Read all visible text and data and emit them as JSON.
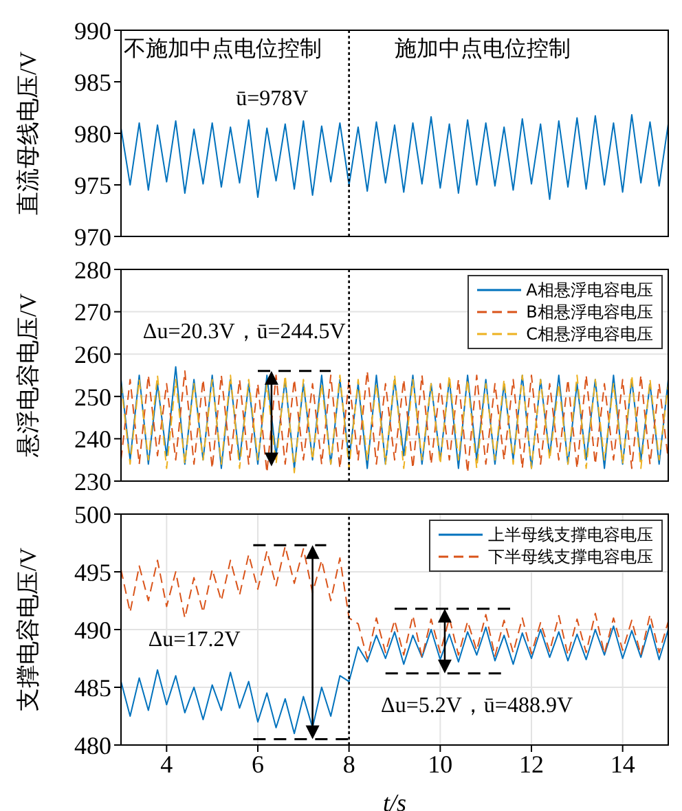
{
  "chart_data": [
    {
      "type": "line",
      "ylabel": "直流母线电压/V",
      "xlim": [
        3,
        15
      ],
      "xticks": [
        4,
        6,
        8,
        10,
        12,
        14
      ],
      "ylim": [
        970,
        990
      ],
      "yticks": [
        970,
        975,
        980,
        985,
        990
      ],
      "grid": false,
      "legend": false,
      "tick_labels": "y",
      "x": [
        3,
        3.2,
        3.4,
        3.6,
        3.8,
        4,
        4.2,
        4.4,
        4.6,
        4.8,
        5,
        5.2,
        5.4,
        5.6,
        5.8,
        6,
        6.2,
        6.4,
        6.6,
        6.8,
        7,
        7.2,
        7.4,
        7.6,
        7.8,
        8,
        8.2,
        8.4,
        8.6,
        8.8,
        9,
        9.2,
        9.4,
        9.6,
        9.8,
        10,
        10.2,
        10.4,
        10.6,
        10.8,
        11,
        11.2,
        11.4,
        11.6,
        11.8,
        12,
        12.2,
        12.4,
        12.6,
        12.8,
        13,
        13.2,
        13.4,
        13.6,
        13.8,
        14,
        14.2,
        14.4,
        14.6,
        14.8,
        15
      ],
      "series": [
        {
          "color": "#0072bd",
          "line_style": "solid",
          "values": [
            980.5,
            975.0,
            981.0,
            974.5,
            980.8,
            975.3,
            981.2,
            974.2,
            980.4,
            975.1,
            981.0,
            974.8,
            980.6,
            975.2,
            981.3,
            973.8,
            980.5,
            975.4,
            980.9,
            974.6,
            981.2,
            974.0,
            980.7,
            975.3,
            981.0,
            975.0,
            980.6,
            974.4,
            981.1,
            975.2,
            980.8,
            974.3,
            981.0,
            975.1,
            981.6,
            974.7,
            980.9,
            974.2,
            981.3,
            975.0,
            981.0,
            974.9,
            980.6,
            974.5,
            981.4,
            975.1,
            980.9,
            973.6,
            981.2,
            974.8,
            981.5,
            974.6,
            981.7,
            975.0,
            981.0,
            974.3,
            981.8,
            975.2,
            981.1,
            974.9,
            980.9
          ]
        }
      ],
      "annotations": [
        "不施加中点电位控制",
        "施加中点电位控制",
        "ū=978V"
      ],
      "ref_lines": [
        {
          "axis": "x",
          "value": 8,
          "line_style": "dotted",
          "color": "#000000"
        }
      ]
    },
    {
      "type": "line",
      "ylabel": "悬浮电容电压/V",
      "xlim": [
        3,
        15
      ],
      "xticks": [
        4,
        6,
        8,
        10,
        12,
        14
      ],
      "ylim": [
        230,
        280
      ],
      "yticks": [
        230,
        240,
        250,
        260,
        270,
        280
      ],
      "grid": true,
      "legend": "top right",
      "tick_labels": "y",
      "x": [
        3,
        3.2,
        3.4,
        3.6,
        3.8,
        4,
        4.2,
        4.4,
        4.6,
        4.8,
        5,
        5.2,
        5.4,
        5.6,
        5.8,
        6,
        6.2,
        6.4,
        6.6,
        6.8,
        7,
        7.2,
        7.4,
        7.6,
        7.8,
        8,
        8.2,
        8.4,
        8.6,
        8.8,
        9,
        9.2,
        9.4,
        9.6,
        9.8,
        10,
        10.2,
        10.4,
        10.6,
        10.8,
        11,
        11.2,
        11.4,
        11.6,
        11.8,
        12,
        12.2,
        12.4,
        12.6,
        12.8,
        13,
        13.2,
        13.4,
        13.6,
        13.8,
        14,
        14.2,
        14.4,
        14.6,
        14.8,
        15
      ],
      "series": [
        {
          "name": "A相悬浮电容电压",
          "color": "#0072bd",
          "line_style": "solid",
          "values": [
            254,
            235,
            255,
            234,
            253,
            236,
            257,
            234,
            254,
            235,
            255,
            233,
            254,
            235,
            253,
            234,
            255,
            236,
            254,
            233,
            253,
            235,
            255,
            234,
            254,
            235,
            253,
            233,
            255,
            234,
            254,
            236,
            255,
            234,
            253,
            235,
            254,
            233,
            255,
            235,
            254,
            234,
            253,
            235,
            255,
            233,
            254,
            236,
            255,
            234,
            253,
            235,
            254,
            233,
            255,
            234,
            254,
            235,
            253,
            234,
            254
          ]
        },
        {
          "name": "B相悬浮电容电压",
          "color": "#d95319",
          "line_style": "dashed",
          "values": [
            235,
            254,
            234,
            255,
            236,
            253,
            235,
            256,
            234,
            254,
            233,
            255,
            235,
            254,
            234,
            253,
            232,
            255,
            234,
            254,
            235,
            253,
            234,
            255,
            233,
            254,
            235,
            256,
            234,
            253,
            235,
            254,
            233,
            255,
            234,
            253,
            235,
            254,
            232,
            255,
            234,
            253,
            235,
            254,
            233,
            255,
            234,
            253,
            235,
            254,
            233,
            255,
            234,
            253,
            235,
            254,
            233,
            255,
            234,
            253,
            235
          ]
        },
        {
          "name": "C相悬浮电容电压",
          "color": "#edb120",
          "line_style": "dashed",
          "values": [
            253,
            234,
            254,
            235,
            255,
            233,
            254,
            234,
            253,
            235,
            254,
            234,
            255,
            233,
            254,
            235,
            253,
            234,
            255,
            232,
            254,
            235,
            253,
            234,
            255,
            233,
            254,
            235,
            253,
            234,
            255,
            233,
            254,
            235,
            253,
            234,
            255,
            235,
            254,
            233,
            253,
            235,
            254,
            234,
            255,
            233,
            254,
            235,
            253,
            234,
            255,
            233,
            254,
            235,
            253,
            234,
            255,
            233,
            254,
            235,
            253
          ]
        }
      ],
      "annotations": [
        "Δu=20.3V，ū=244.5V"
      ],
      "ref_lines": [
        {
          "axis": "x",
          "value": 8,
          "line_style": "dotted",
          "color": "#000000"
        }
      ]
    },
    {
      "type": "line",
      "xlabel": "t/s",
      "ylabel": "支撑电容电压/V",
      "xlim": [
        3,
        15
      ],
      "xticks": [
        4,
        6,
        8,
        10,
        12,
        14
      ],
      "ylim": [
        480,
        500
      ],
      "yticks": [
        480,
        485,
        490,
        495,
        500
      ],
      "grid": true,
      "legend": "top right",
      "x": [
        3,
        3.2,
        3.4,
        3.6,
        3.8,
        4,
        4.2,
        4.4,
        4.6,
        4.8,
        5,
        5.2,
        5.4,
        5.6,
        5.8,
        6,
        6.2,
        6.4,
        6.6,
        6.8,
        7,
        7.2,
        7.4,
        7.6,
        7.8,
        8,
        8.2,
        8.4,
        8.6,
        8.8,
        9,
        9.2,
        9.4,
        9.6,
        9.8,
        10,
        10.2,
        10.4,
        10.6,
        10.8,
        11,
        11.2,
        11.4,
        11.6,
        11.8,
        12,
        12.2,
        12.4,
        12.6,
        12.8,
        13,
        13.2,
        13.4,
        13.6,
        13.8,
        14,
        14.2,
        14.4,
        14.6,
        14.8,
        15
      ],
      "series": [
        {
          "name": "上半母线支撑电容电压",
          "color": "#0072bd",
          "line_style": "solid",
          "values": [
            485.5,
            482.5,
            485.8,
            483.0,
            486.5,
            483.5,
            486.0,
            482.8,
            485.0,
            482.2,
            485.2,
            483.0,
            486.3,
            483.2,
            485.5,
            482.0,
            484.5,
            481.5,
            484.0,
            481.0,
            484.2,
            481.5,
            485.0,
            482.5,
            486.0,
            485.5,
            488.5,
            487.2,
            489.5,
            487.5,
            489.8,
            487.0,
            489.5,
            487.6,
            490.0,
            487.4,
            489.6,
            487.2,
            489.8,
            487.8,
            490.2,
            487.3,
            489.5,
            487.0,
            489.7,
            487.5,
            490.0,
            487.6,
            489.8,
            487.3,
            489.6,
            487.4,
            490.0,
            487.8,
            490.3,
            487.5,
            489.9,
            487.6,
            490.4,
            487.4,
            490.0
          ]
        },
        {
          "name": "下半母线支撑电容电压",
          "color": "#d95319",
          "line_style": "dashed",
          "values": [
            495.2,
            491.5,
            495.5,
            492.5,
            496.0,
            492.0,
            495.0,
            491.0,
            494.5,
            491.5,
            495.2,
            492.5,
            496.0,
            493.0,
            496.5,
            493.5,
            496.8,
            493.8,
            497.2,
            494.0,
            497.0,
            493.2,
            496.0,
            492.5,
            496.2,
            491.0,
            490.5,
            487.5,
            491.0,
            488.0,
            490.8,
            487.8,
            491.2,
            487.6,
            490.9,
            488.0,
            491.0,
            487.8,
            490.7,
            488.2,
            491.3,
            487.7,
            490.8,
            488.0,
            491.0,
            487.9,
            490.6,
            488.1,
            491.2,
            487.8,
            490.9,
            488.0,
            491.4,
            487.9,
            491.0,
            488.2,
            490.8,
            487.8,
            491.3,
            488.0,
            490.7
          ]
        }
      ],
      "annotations": [
        "Δu=17.2V",
        "Δu=5.2V，ū=488.9V"
      ],
      "ref_lines": [
        {
          "axis": "x",
          "value": 8,
          "line_style": "dotted",
          "color": "#000000"
        }
      ]
    }
  ]
}
